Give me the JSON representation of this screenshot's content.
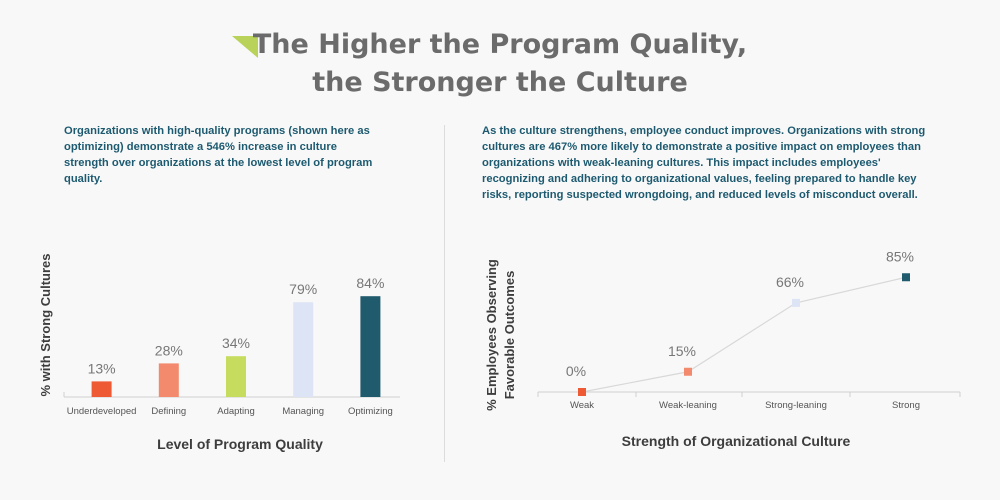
{
  "header": {
    "title_line1": "The Higher the Program Quality,",
    "title_line2": "the Stronger the Culture",
    "accent_color": "#b8d25a"
  },
  "left_panel": {
    "description": "Organizations with high-quality programs (shown here as optimizing) demonstrate a 546% increase in culture strength over organizations at the lowest level of program quality."
  },
  "right_panel": {
    "description": "As the culture strengthens, employee conduct improves. Organizations with strong cultures are 467% more likely to demonstrate a positive impact on employees than organizations with weak-leaning cultures. This impact includes employees' recognizing and adhering to organizational values, feeling prepared to handle key risks, reporting suspected wrongdoing, and reduced levels of misconduct overall."
  },
  "chart_data": [
    {
      "type": "bar",
      "xlabel": "Level of Program Quality",
      "ylabel": "% with Strong Cultures",
      "ylim": [
        0,
        100
      ],
      "grid": false,
      "categories": [
        "Underdeveloped",
        "Defining",
        "Adapting",
        "Managing",
        "Optimizing"
      ],
      "values": [
        13,
        28,
        34,
        79,
        84
      ],
      "data_labels": [
        "13%",
        "28%",
        "34%",
        "79%",
        "84%"
      ],
      "colors": [
        "#ee5a33",
        "#f48a6d",
        "#c5dc5f",
        "#dce4f5",
        "#1f5a6d"
      ]
    },
    {
      "type": "line",
      "xlabel": "Strength of Organizational Culture",
      "ylabel_line1": "% Employees Observing",
      "ylabel_line2": "Favorable Outcomes",
      "ylim": [
        0,
        100
      ],
      "grid": false,
      "categories": [
        "Weak",
        "Weak-leaning",
        "Strong-leaning",
        "Strong"
      ],
      "values": [
        0,
        15,
        66,
        85
      ],
      "data_labels": [
        "0%",
        "15%",
        "66%",
        "85%"
      ],
      "marker_colors": [
        "#ee5a33",
        "#f48a6d",
        "#dce4f5",
        "#1f5a6d"
      ],
      "line_color": "#d8d8d8"
    }
  ]
}
